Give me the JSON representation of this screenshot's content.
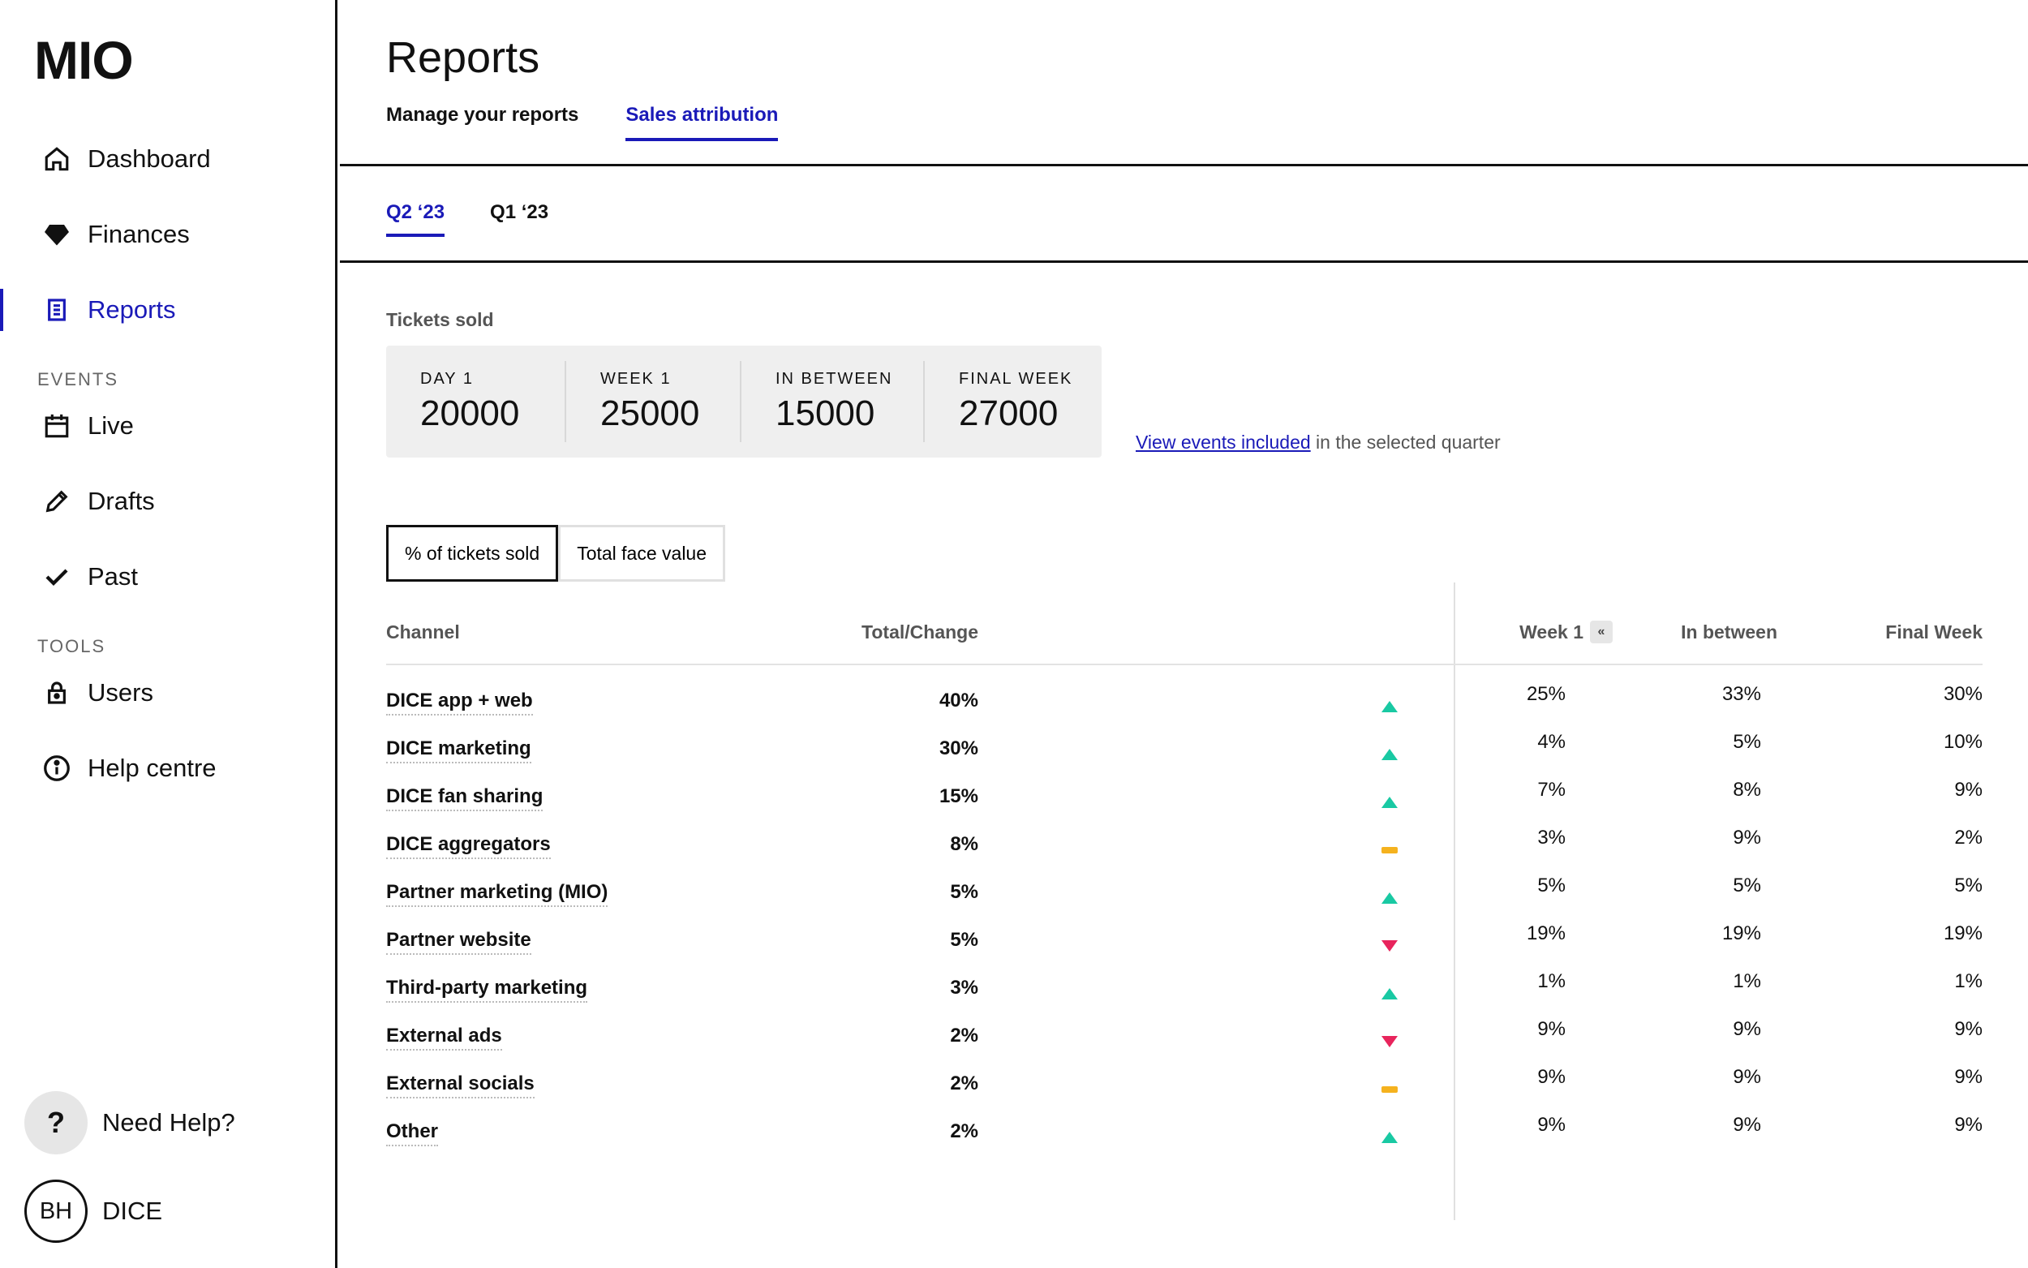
{
  "app": {
    "logo": "MIO"
  },
  "sidebar": {
    "items": [
      {
        "label": "Dashboard",
        "icon": "home-icon"
      },
      {
        "label": "Finances",
        "icon": "diamond-icon"
      },
      {
        "label": "Reports",
        "icon": "report-icon",
        "active": true
      }
    ],
    "events_section": "EVENTS",
    "event_items": [
      {
        "label": "Live",
        "icon": "calendar-icon"
      },
      {
        "label": "Drafts",
        "icon": "pencil-icon"
      },
      {
        "label": "Past",
        "icon": "check-icon"
      }
    ],
    "tools_section": "TOOLS",
    "tool_items": [
      {
        "label": "Users",
        "icon": "lock-icon"
      },
      {
        "label": "Help centre",
        "icon": "info-icon"
      }
    ],
    "help": {
      "glyph": "?",
      "label": "Need Help?"
    },
    "user": {
      "initials": "BH",
      "name": "DICE"
    }
  },
  "header": {
    "title": "Reports",
    "tabs": [
      {
        "label": "Manage your reports",
        "active": false
      },
      {
        "label": "Sales attribution",
        "active": true
      }
    ]
  },
  "quarter_tabs": [
    {
      "label": "Q2 ‘23",
      "active": true
    },
    {
      "label": "Q1 ‘23",
      "active": false
    }
  ],
  "tickets": {
    "label": "Tickets sold",
    "stats": [
      {
        "label": "DAY 1",
        "value": "20000"
      },
      {
        "label": "WEEK 1",
        "value": "25000"
      },
      {
        "label": "IN BETWEEN",
        "value": "15000"
      },
      {
        "label": "FINAL WEEK",
        "value": "27000"
      }
    ],
    "events_link": "View events included",
    "events_suffix": " in the selected quarter"
  },
  "toggle": {
    "options": [
      {
        "label": "% of tickets sold",
        "active": true
      },
      {
        "label": "Total face value",
        "active": false
      }
    ]
  },
  "table": {
    "headers": {
      "channel": "Channel",
      "total": "Total/Change",
      "week1": "Week 1",
      "week1_button": "«",
      "in_between": "In between",
      "final_week": "Final Week"
    },
    "colors": {
      "up": "#19c9a3",
      "down": "#e8245c",
      "flat": "#f5b21e"
    },
    "rows": [
      {
        "channel": "DICE app + web",
        "total": "40%",
        "trend": "up",
        "week1": "25%",
        "in_between": "33%",
        "final_week": "30%"
      },
      {
        "channel": "DICE marketing",
        "total": "30%",
        "trend": "up",
        "week1": "4%",
        "in_between": "5%",
        "final_week": "10%"
      },
      {
        "channel": "DICE fan sharing",
        "total": "15%",
        "trend": "up",
        "week1": "7%",
        "in_between": "8%",
        "final_week": "9%"
      },
      {
        "channel": "DICE aggregators",
        "total": "8%",
        "trend": "flat",
        "week1": "3%",
        "in_between": "9%",
        "final_week": "2%"
      },
      {
        "channel": "Partner marketing (MIO)",
        "total": "5%",
        "trend": "up",
        "week1": "5%",
        "in_between": "5%",
        "final_week": "5%"
      },
      {
        "channel": "Partner website",
        "total": "5%",
        "trend": "down",
        "week1": "19%",
        "in_between": "19%",
        "final_week": "19%"
      },
      {
        "channel": "Third-party marketing",
        "total": "3%",
        "trend": "up",
        "week1": "1%",
        "in_between": "1%",
        "final_week": "1%"
      },
      {
        "channel": "External ads",
        "total": "2%",
        "trend": "down",
        "week1": "9%",
        "in_between": "9%",
        "final_week": "9%"
      },
      {
        "channel": "External socials",
        "total": "2%",
        "trend": "flat",
        "week1": "9%",
        "in_between": "9%",
        "final_week": "9%"
      },
      {
        "channel": "Other",
        "total": "2%",
        "trend": "up",
        "week1": "9%",
        "in_between": "9%",
        "final_week": "9%"
      }
    ]
  }
}
